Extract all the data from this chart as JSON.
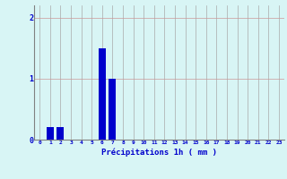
{
  "hours": [
    0,
    1,
    2,
    3,
    4,
    5,
    6,
    7,
    8,
    9,
    10,
    11,
    12,
    13,
    14,
    15,
    16,
    17,
    18,
    19,
    20,
    21,
    22,
    23
  ],
  "values": [
    0,
    0.2,
    0.2,
    0,
    0,
    0,
    1.5,
    1.0,
    0,
    0,
    0,
    0,
    0,
    0,
    0,
    0,
    0,
    0,
    0,
    0,
    0,
    0,
    0,
    0
  ],
  "bar_color": "#0000cc",
  "background_color": "#d8f5f5",
  "grid_color": "#aaaaaa",
  "grid_color_h": "#cc9999",
  "xlabel": "Précipitations 1h ( mm )",
  "xlabel_color": "#0000cc",
  "tick_color": "#0000cc",
  "ylim": [
    0,
    2.2
  ],
  "yticks": [
    0,
    1,
    2
  ],
  "xlim": [
    -0.5,
    23.5
  ],
  "bar_width": 0.7
}
